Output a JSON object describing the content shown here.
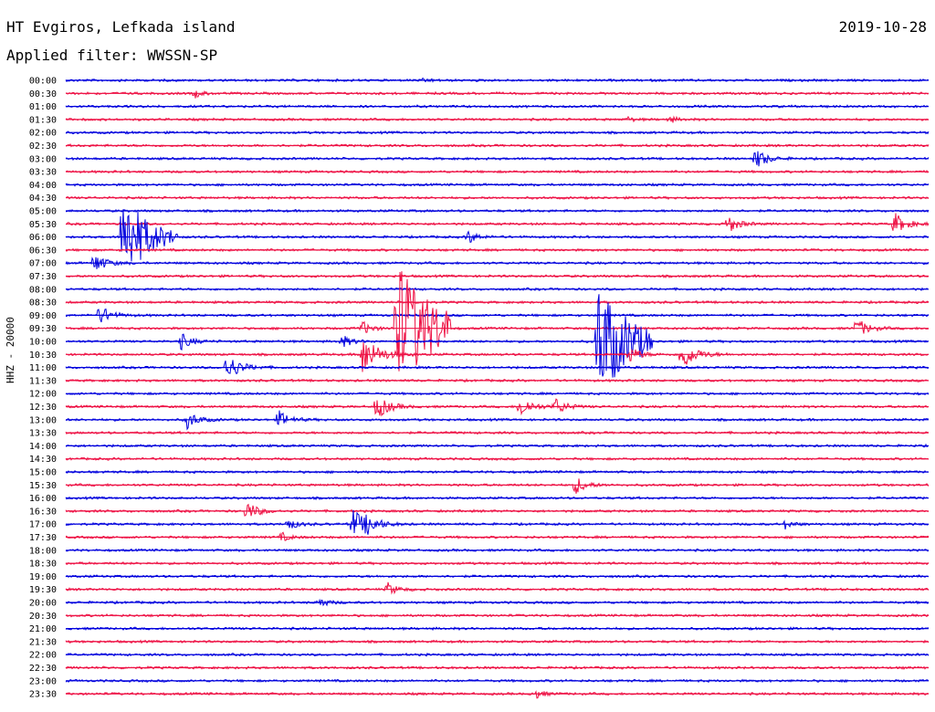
{
  "header": {
    "station": "HT Evgiros, Lefkada island",
    "date": "2019-10-28",
    "filter": "Applied filter: WWSSN-SP",
    "channel": "HHZ - 20000"
  },
  "colors": {
    "odd_trace": "#0000dd",
    "even_trace": "#ee1144"
  },
  "chart_data": {
    "type": "line",
    "title": "HT Evgiros, Lefkada island",
    "date": "2019-10-28",
    "filter": "WWSSN-SP",
    "ylabel": "HHZ - 20000",
    "row_labels": [
      "00:00",
      "00:30",
      "01:00",
      "01:30",
      "02:00",
      "02:30",
      "03:00",
      "03:30",
      "04:00",
      "04:30",
      "05:00",
      "05:30",
      "06:00",
      "06:30",
      "07:00",
      "07:30",
      "08:00",
      "08:30",
      "09:00",
      "09:30",
      "10:00",
      "10:30",
      "11:00",
      "11:30",
      "12:00",
      "12:30",
      "13:00",
      "13:30",
      "14:00",
      "14:30",
      "15:00",
      "15:30",
      "16:00",
      "16:30",
      "17:00",
      "17:30",
      "18:00",
      "18:30",
      "19:00",
      "19:30",
      "20:00",
      "20:30",
      "21:00",
      "21:30",
      "22:00",
      "22:30",
      "23:00",
      "23:30"
    ],
    "x_minutes_per_row": 30,
    "series_colors": [
      "#0000dd",
      "#ee1144"
    ],
    "events": [
      {
        "row": 0,
        "minute": 12.5,
        "amp": 0.3
      },
      {
        "row": 1,
        "minute": 4.5,
        "amp": 0.6
      },
      {
        "row": 3,
        "minute": 19.5,
        "amp": 0.4
      },
      {
        "row": 3,
        "minute": 21,
        "amp": 0.5
      },
      {
        "row": 6,
        "minute": 24,
        "amp": 1.6
      },
      {
        "row": 11,
        "minute": 23,
        "amp": 1.5
      },
      {
        "row": 11,
        "minute": 28.8,
        "amp": 1.8
      },
      {
        "row": 12,
        "minute": 2,
        "amp": 7.0
      },
      {
        "row": 12,
        "minute": 14,
        "amp": 1.0
      },
      {
        "row": 14,
        "minute": 1,
        "amp": 1.6
      },
      {
        "row": 18,
        "minute": 1.2,
        "amp": 1.5
      },
      {
        "row": 19,
        "minute": 11.5,
        "amp": 11.0
      },
      {
        "row": 19,
        "minute": 10.3,
        "amp": 1.1
      },
      {
        "row": 19,
        "minute": 27.5,
        "amp": 1.6
      },
      {
        "row": 20,
        "minute": 4,
        "amp": 1.3
      },
      {
        "row": 20,
        "minute": 9.6,
        "amp": 1.0
      },
      {
        "row": 20,
        "minute": 18.5,
        "amp": 9.5
      },
      {
        "row": 21,
        "minute": 10.3,
        "amp": 3.2
      },
      {
        "row": 21,
        "minute": 19.6,
        "amp": 1.3
      },
      {
        "row": 21,
        "minute": 21.4,
        "amp": 2.5
      },
      {
        "row": 22,
        "minute": 5.6,
        "amp": 2.2
      },
      {
        "row": 25,
        "minute": 10.8,
        "amp": 2.0
      },
      {
        "row": 25,
        "minute": 15.8,
        "amp": 1.7
      },
      {
        "row": 25,
        "minute": 17,
        "amp": 1.4
      },
      {
        "row": 26,
        "minute": 4.2,
        "amp": 1.5
      },
      {
        "row": 26,
        "minute": 7.4,
        "amp": 1.4
      },
      {
        "row": 31,
        "minute": 17.7,
        "amp": 1.5
      },
      {
        "row": 33,
        "minute": 6.3,
        "amp": 1.5
      },
      {
        "row": 34,
        "minute": 7.7,
        "amp": 1.0
      },
      {
        "row": 34,
        "minute": 10,
        "amp": 2.3
      },
      {
        "row": 34,
        "minute": 10.5,
        "amp": 1.2
      },
      {
        "row": 34,
        "minute": 25,
        "amp": 0.7
      },
      {
        "row": 35,
        "minute": 7.5,
        "amp": 0.7
      },
      {
        "row": 39,
        "minute": 11.2,
        "amp": 1.0
      },
      {
        "row": 40,
        "minute": 8.8,
        "amp": 0.8
      },
      {
        "row": 47,
        "minute": 16.3,
        "amp": 0.8
      }
    ]
  }
}
